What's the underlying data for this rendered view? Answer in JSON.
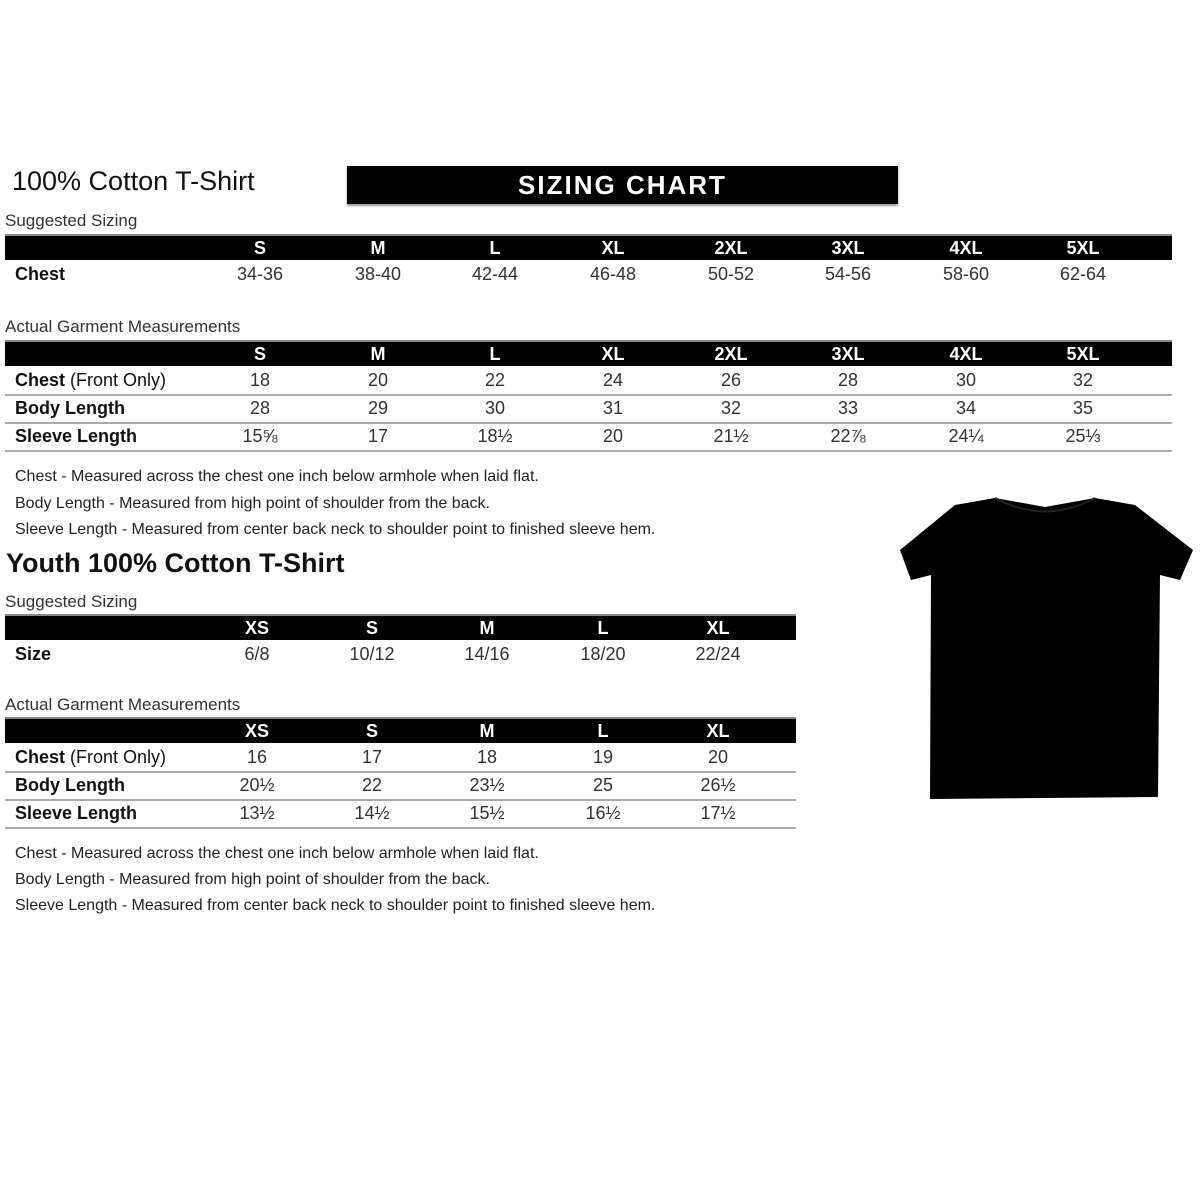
{
  "adult": {
    "title": "100% Cotton T-Shirt",
    "banner": "SIZING CHART",
    "suggested_label": "Suggested Sizing",
    "sizes": [
      "S",
      "M",
      "L",
      "XL",
      "2XL",
      "3XL",
      "4XL",
      "5XL"
    ],
    "suggested_rows": [
      {
        "label": "Chest",
        "label_extra": "",
        "values": [
          "34-36",
          "38-40",
          "42-44",
          "46-48",
          "50-52",
          "54-56",
          "58-60",
          "62-64"
        ]
      }
    ],
    "actual_label": "Actual Garment Measurements",
    "actual_rows": [
      {
        "label": "Chest",
        "label_extra": " (Front Only)",
        "values": [
          "18",
          "20",
          "22",
          "24",
          "26",
          "28",
          "30",
          "32"
        ]
      },
      {
        "label": "Body Length",
        "label_extra": "",
        "values": [
          "28",
          "29",
          "30",
          "31",
          "32",
          "33",
          "34",
          "35"
        ]
      },
      {
        "label": "Sleeve Length",
        "label_extra": "",
        "values": [
          "15⅝",
          "17",
          "18½",
          "20",
          "21½",
          "22⅞",
          "24¼",
          "25⅓"
        ]
      }
    ],
    "notes": [
      "Chest - Measured across the chest one inch below armhole when laid flat.",
      "Body Length - Measured from high point of shoulder from the back.",
      "Sleeve Length - Measured from center back neck to shoulder point to finished sleeve hem."
    ]
  },
  "youth": {
    "title": "Youth 100% Cotton T-Shirt",
    "suggested_label": "Suggested Sizing",
    "sizes": [
      "XS",
      "S",
      "M",
      "L",
      "XL"
    ],
    "suggested_rows": [
      {
        "label": "Size",
        "label_extra": "",
        "values": [
          "6/8",
          "10/12",
          "14/16",
          "18/20",
          "22/24"
        ]
      }
    ],
    "actual_label": "Actual Garment Measurements",
    "actual_rows": [
      {
        "label": "Chest",
        "label_extra": " (Front Only)",
        "values": [
          "16",
          "17",
          "18",
          "19",
          "20"
        ]
      },
      {
        "label": "Body Length",
        "label_extra": "",
        "values": [
          "20½",
          "22",
          "23½",
          "25",
          "26½"
        ]
      },
      {
        "label": "Sleeve Length",
        "label_extra": "",
        "values": [
          "13½",
          "14½",
          "15½",
          "16½",
          "17½"
        ]
      }
    ],
    "notes": [
      "Chest - Measured across the chest one inch below armhole when laid flat.",
      "Body Length - Measured from high point of shoulder from the back.",
      "Sleeve Length - Measured from center back neck to shoulder point to finished sleeve hem."
    ]
  },
  "tshirt_color": "#000000"
}
